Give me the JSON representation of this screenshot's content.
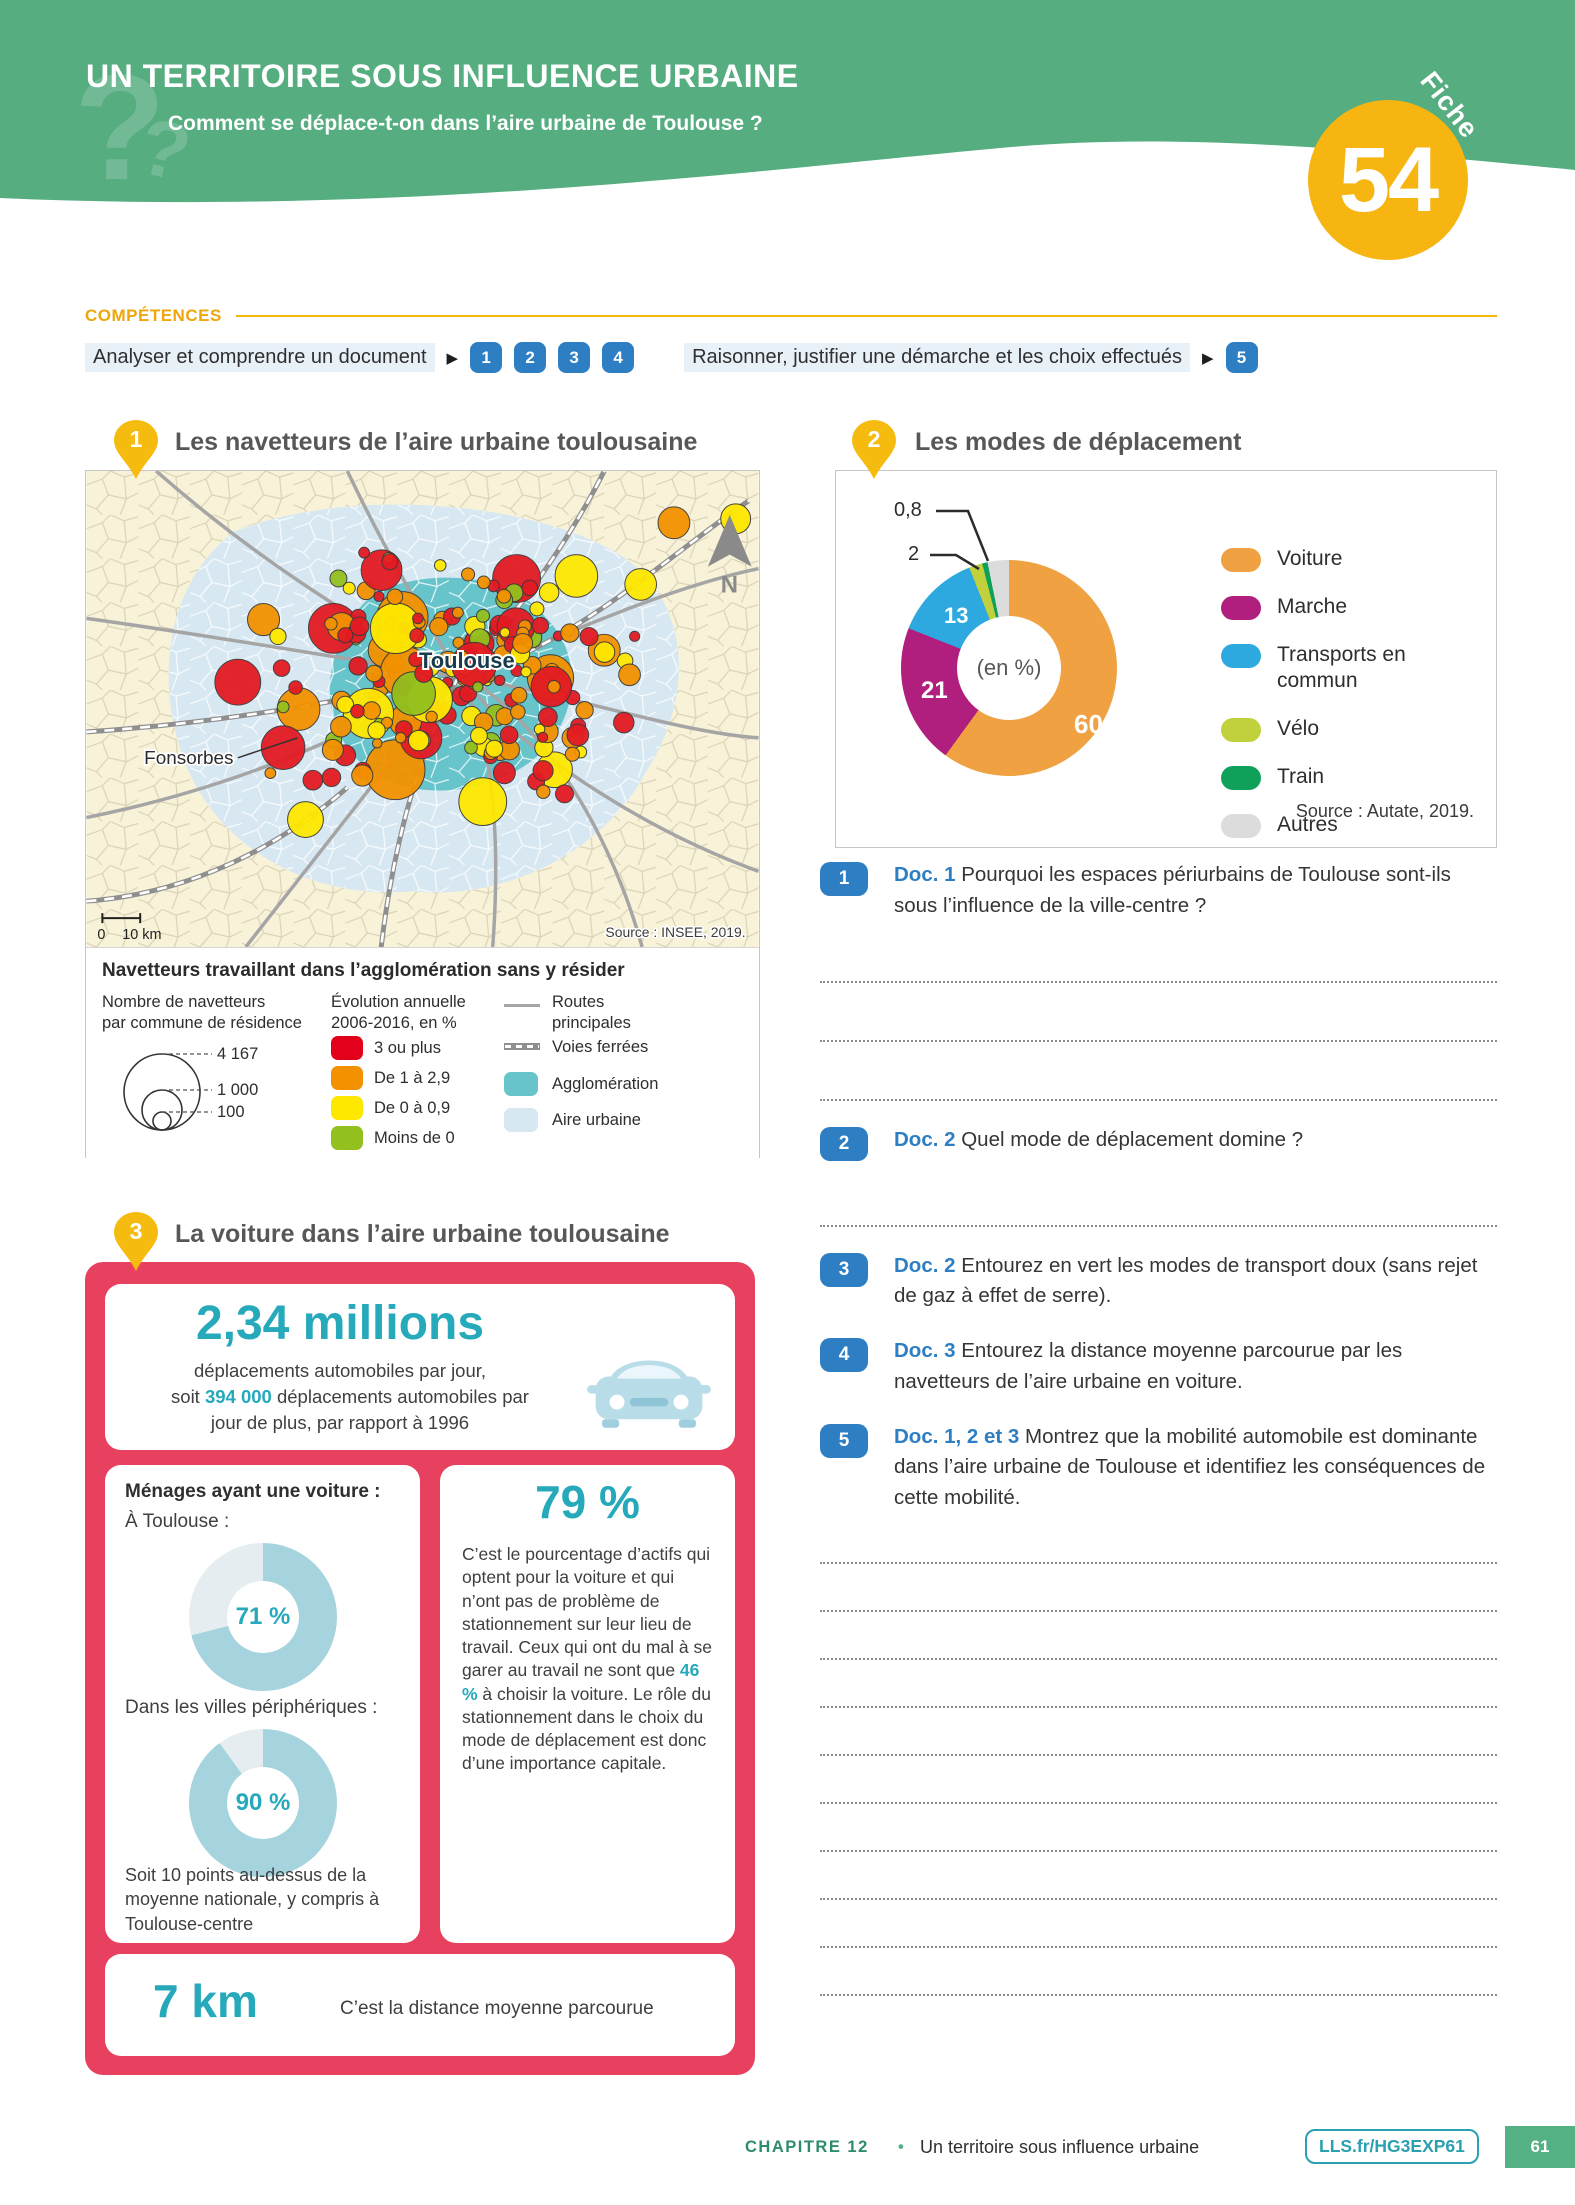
{
  "palette": {
    "header_green": "#55ad80",
    "fiche_yellow": "#f6b510",
    "badge_blue": "#2d7ec2",
    "accent_teal": "#25a9bb",
    "frame_red": "#e8415f",
    "competences_yellow": "#efa60c",
    "footer_green": "#2e8c6e",
    "page_box_green": "#54b183",
    "map_agglomeration": "#66c4ca",
    "map_aire_urbaine": "#d7e8f2",
    "map_background": "#f8f2d8"
  },
  "header": {
    "title": "UN TERRITOIRE SOUS INFLUENCE URBAINE",
    "subtitle": "Comment se déplace-t-on dans l’aire urbaine de Toulouse ?",
    "fiche_label": "Fiche",
    "fiche_number": "54",
    "watermark_char": "?"
  },
  "competences": {
    "label": "COMPÉTENCES",
    "arrow": "▶",
    "items": [
      {
        "text": "Analyser et comprendre un document",
        "badges": [
          "1",
          "2",
          "3",
          "4"
        ]
      },
      {
        "text": "Raisonner, justifier une démarche et les choix effectués",
        "badges": [
          "5"
        ]
      }
    ]
  },
  "doc1": {
    "number": "1",
    "title": "Les navetteurs de l’aire urbaine toulousaine",
    "map": {
      "city_label": "Toulouse",
      "town_label": "Fonsorbes",
      "north_label": "N",
      "scale_zero": "0",
      "scale_label": "10 km",
      "source": "Source : INSEE, 2019.",
      "bubble_colors": [
        {
          "color": "#e31b23",
          "weight": 0.4
        },
        {
          "color": "#f39200",
          "weight": 0.3
        },
        {
          "color": "#ffe800",
          "weight": 0.2
        },
        {
          "color": "#93c01f",
          "weight": 0.1
        }
      ],
      "feature_bubbles": [
        {
          "x": 248,
          "y": 158,
          "r": 25,
          "c": 0
        },
        {
          "x": 310,
          "y": 300,
          "r": 30,
          "c": 1
        },
        {
          "x": 336,
          "y": 268,
          "r": 21,
          "c": 0
        },
        {
          "x": 432,
          "y": 108,
          "r": 24,
          "c": 0
        },
        {
          "x": 398,
          "y": 332,
          "r": 24,
          "c": 2
        },
        {
          "x": 152,
          "y": 212,
          "r": 23,
          "c": 0
        },
        {
          "x": 590,
          "y": 52,
          "r": 16,
          "c": 1
        },
        {
          "x": 652,
          "y": 48,
          "r": 15,
          "c": 2
        },
        {
          "x": 470,
          "y": 300,
          "r": 18,
          "c": 2
        },
        {
          "x": 520,
          "y": 180,
          "r": 16,
          "c": 1
        },
        {
          "x": 220,
          "y": 350,
          "r": 18,
          "c": 2
        },
        {
          "x": 300,
          "y": 180,
          "r": 17,
          "c": 1
        }
      ],
      "random_bubbles": {
        "seed": 7,
        "count": 185
      }
    },
    "legend": {
      "title": "Navetteurs travaillant dans l’agglomération sans y résider",
      "circles_title_l1": "Nombre de navetteurs",
      "circles_title_l2": "par commune de résidence",
      "circle_values": [
        "4 167",
        "1 000",
        "100"
      ],
      "evolution_title_l1": "Évolution annuelle",
      "evolution_title_l2": "2006-2016, en %",
      "evolution_items": [
        {
          "label": "3 ou plus",
          "color": "#e3001b"
        },
        {
          "label": "De 1 à 2,9",
          "color": "#f39200"
        },
        {
          "label": "De 0 à 0,9",
          "color": "#ffe800"
        },
        {
          "label": "Moins de 0",
          "color": "#93c01f"
        }
      ],
      "routes_l1": "Routes",
      "routes_l2": "principales",
      "rail_label": "Voies ferrées",
      "agglo_label": "Agglomération",
      "aire_label": "Aire urbaine",
      "agglo_color": "#66c4ca",
      "aire_color": "#d7e8f2"
    }
  },
  "doc2": {
    "number": "2",
    "title": "Les modes de déplacement",
    "center_label": "(en %)",
    "slice_labels": {
      "voiture": "60",
      "marche": "21",
      "tc": "13",
      "velo": "2",
      "train": "0,8"
    },
    "source": "Source : Autate, 2019."
  },
  "chart_data": [
    {
      "type": "pie",
      "donut": true,
      "title": "Les modes de déplacement",
      "unit": "%",
      "center_label": "(en %)",
      "legend_position": "right",
      "series": [
        {
          "label": "Voiture",
          "value": 60,
          "color": "#f0a243"
        },
        {
          "label": "Marche",
          "value": 21,
          "color": "#b01f7d"
        },
        {
          "label": "Transports en commun",
          "value": 13,
          "color": "#2ea9e0"
        },
        {
          "label": "Vélo",
          "value": 2,
          "color": "#c0d13b"
        },
        {
          "label": "Train",
          "value": 0.8,
          "color": "#0fa05a"
        },
        {
          "label": "Autres",
          "value": 3.2,
          "color": "#dcdcdc"
        }
      ],
      "source": "Source : Autate, 2019."
    },
    {
      "type": "pie",
      "donut": true,
      "title": "Ménages ayant une voiture : À Toulouse",
      "center_label": "71 %",
      "series": [
        {
          "label": "Ménages ayant une voiture",
          "value": 71,
          "color": "#a5d3de"
        },
        {
          "label": "Reste",
          "value": 29,
          "color": "#e6edf0"
        }
      ]
    },
    {
      "type": "pie",
      "donut": true,
      "title": "Ménages ayant une voiture : Dans les villes périphériques",
      "center_label": "90 %",
      "series": [
        {
          "label": "Ménages ayant une voiture",
          "value": 90,
          "color": "#a5d3de"
        },
        {
          "label": "Reste",
          "value": 10,
          "color": "#e6edf0"
        }
      ]
    }
  ],
  "questions": [
    {
      "num": "1",
      "doc": "Doc. 1",
      "text": "Pourquoi les espaces périurbains de Toulouse sont-ils sous l’influence de la ville-centre ?",
      "lines": 3
    },
    {
      "num": "2",
      "doc": "Doc. 2",
      "text": "Quel mode de déplacement domine ?",
      "lines": 1
    },
    {
      "num": "3",
      "doc": "Doc. 2",
      "text": "Entourez en vert les modes de transport doux (sans rejet de gaz à effet de serre).",
      "lines": 0
    },
    {
      "num": "4",
      "doc": "Doc. 3",
      "text": "Entourez la distance moyenne parcourue par les navetteurs de l’aire urbaine en voiture.",
      "lines": 0
    },
    {
      "num": "5",
      "doc": "Doc. 1, 2 et 3",
      "text": "Montrez que la mobilité automobile est dominante dans l’aire urbaine de Toulouse et identifiez les conséquences de cette mobilité.",
      "lines": 10
    }
  ],
  "doc3": {
    "number": "3",
    "title": "La voiture dans l’aire urbaine toulousaine",
    "stat1": {
      "value": "2,34 millions",
      "line1": "déplacements automobiles par jour,",
      "line2_pre": "soit ",
      "line2_strong": "394 000",
      "line2_post": " déplacements automobiles par",
      "line3": "jour de plus, par rapport à 1996"
    },
    "households": {
      "title": "Ménages ayant une voiture :",
      "toulouse_label": "À Toulouse :",
      "toulouse_value": "71 %",
      "periph_label": "Dans les villes périphériques :",
      "periph_value": "90 %",
      "note": "Soit 10 points au-dessus de la moyenne nationale, y compris à Toulouse-centre"
    },
    "parking": {
      "value": "79 %",
      "p1": "C’est le pourcentage d’actifs qui optent pour la voiture et qui n’ont pas de problème de stationnement sur leur lieu de travail. Ceux qui ont du mal à se garer au travail ne sont que ",
      "strong": "46 %",
      "p2": " à choisir la voiture. Le rôle du stationnement dans le choix du mode de déplacement est donc d’une importance capitale."
    },
    "distance": {
      "value": "7 km",
      "label": "C’est la distance moyenne parcourue"
    }
  },
  "footer": {
    "chapter": "CHAPITRE 12",
    "bullet": "•",
    "title": "Un territoire sous influence urbaine",
    "code": "LLS.fr/HG3EXP61",
    "page": "61"
  }
}
